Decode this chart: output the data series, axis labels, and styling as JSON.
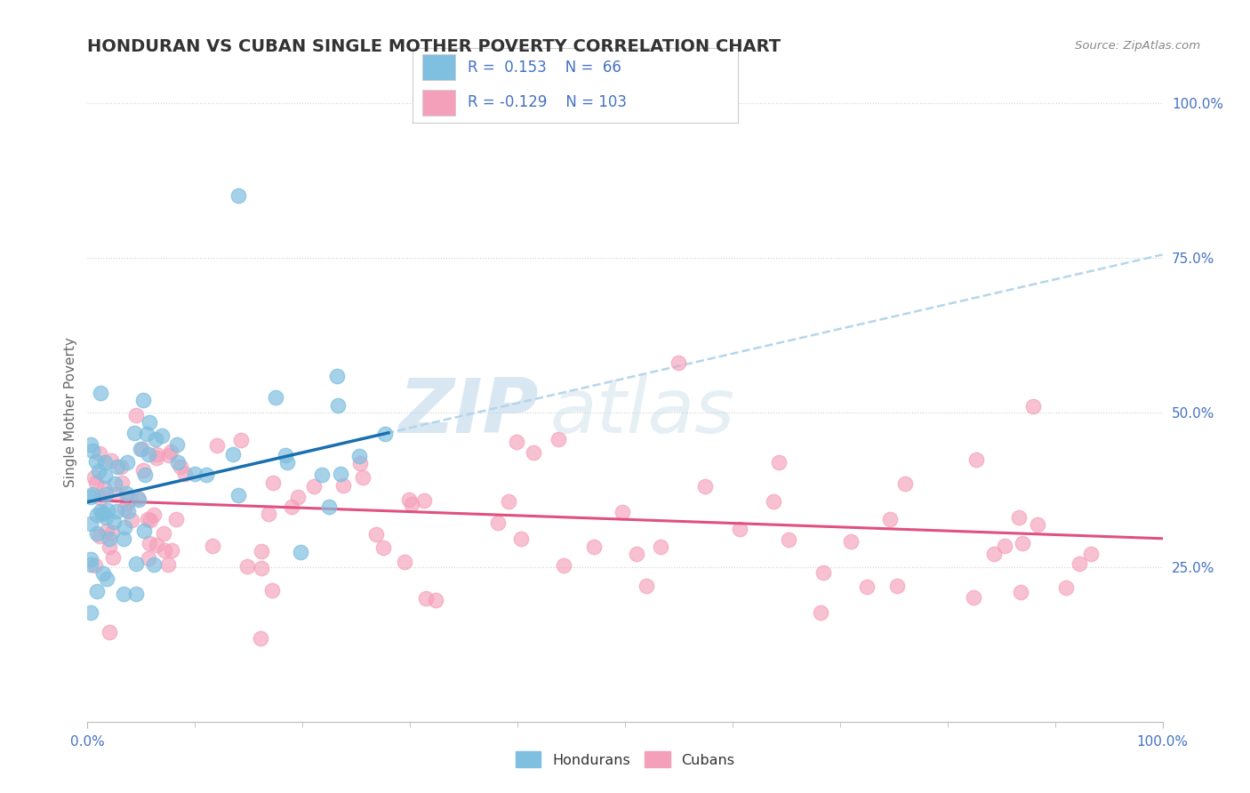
{
  "title": "HONDURAN VS CUBAN SINGLE MOTHER POVERTY CORRELATION CHART",
  "source_text": "Source: ZipAtlas.com",
  "ylabel": "Single Mother Poverty",
  "xlim": [
    0.0,
    1.0
  ],
  "ylim": [
    0.0,
    1.0
  ],
  "honduran_color": "#7fbfdf",
  "cuban_color": "#f5a0bb",
  "honduran_line_color": "#1a6faf",
  "cuban_line_color": "#e05080",
  "dashed_line_color": "#a8cfe8",
  "watermark_zip": "ZIP",
  "watermark_atlas": "atlas",
  "background_color": "#ffffff",
  "grid_color": "#d0d0d0",
  "title_color": "#333333",
  "axis_tick_color": "#4472c4",
  "legend_text_color": "#4472c4",
  "legend_label_color": "#333333",
  "note": "Hondurans N=66 R=0.153, Cubans N=103 R=-0.129"
}
